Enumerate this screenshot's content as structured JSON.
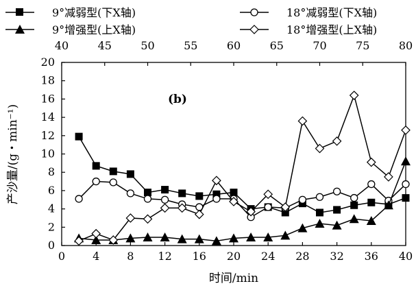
{
  "chart_data": {
    "type": "line",
    "panel_label": "(b)",
    "xlabel_bottom": "时间/min",
    "ylabel": "产沙量/(g・min⁻¹)",
    "x_bottom_range": [
      0,
      40
    ],
    "x_top_range": [
      40,
      80
    ],
    "ylim": [
      0,
      20
    ],
    "x_bottom_ticks": [
      0,
      4,
      8,
      12,
      16,
      20,
      24,
      28,
      32,
      36,
      40
    ],
    "x_top_ticks": [
      40,
      45,
      50,
      55,
      60,
      65,
      70,
      75,
      80
    ],
    "y_ticks": [
      0,
      2,
      4,
      6,
      8,
      10,
      12,
      14,
      16,
      18,
      20
    ],
    "grid": false,
    "legend_position": "top",
    "x": [
      2,
      4,
      6,
      8,
      10,
      12,
      14,
      16,
      18,
      20,
      22,
      24,
      26,
      28,
      30,
      32,
      34,
      36,
      38,
      40
    ],
    "series": [
      {
        "name": "9°减弱型(下X轴)",
        "marker": "square-filled",
        "axis": "bottom",
        "values": [
          11.9,
          8.7,
          8.1,
          7.8,
          5.8,
          6.1,
          5.7,
          5.4,
          5.6,
          5.8,
          4.0,
          4.2,
          3.6,
          4.6,
          3.6,
          3.9,
          4.4,
          4.7,
          4.5,
          5.2
        ]
      },
      {
        "name": "18°减弱型(下X轴)",
        "marker": "circle-open",
        "axis": "bottom",
        "values": [
          5.1,
          7.0,
          6.9,
          5.7,
          5.1,
          5.0,
          4.5,
          4.2,
          5.1,
          5.1,
          3.1,
          4.2,
          4.1,
          5.0,
          5.3,
          5.9,
          5.2,
          6.7,
          4.9,
          6.7
        ]
      },
      {
        "name": "9°增强型(上X轴)",
        "marker": "triangle-filled",
        "axis": "top",
        "values": [
          0.8,
          0.6,
          0.6,
          0.8,
          0.9,
          0.9,
          0.7,
          0.7,
          0.5,
          0.8,
          0.9,
          0.9,
          1.1,
          1.9,
          2.4,
          2.2,
          2.9,
          2.7,
          4.4,
          9.2
        ]
      },
      {
        "name": "18°增强型(上X轴)",
        "marker": "diamond-open",
        "axis": "top",
        "values": [
          0.5,
          1.3,
          0.6,
          3.0,
          2.9,
          4.1,
          4.1,
          3.4,
          7.1,
          4.8,
          3.7,
          5.6,
          4.2,
          13.6,
          10.6,
          11.4,
          16.4,
          9.1,
          7.5,
          12.6
        ]
      }
    ]
  }
}
